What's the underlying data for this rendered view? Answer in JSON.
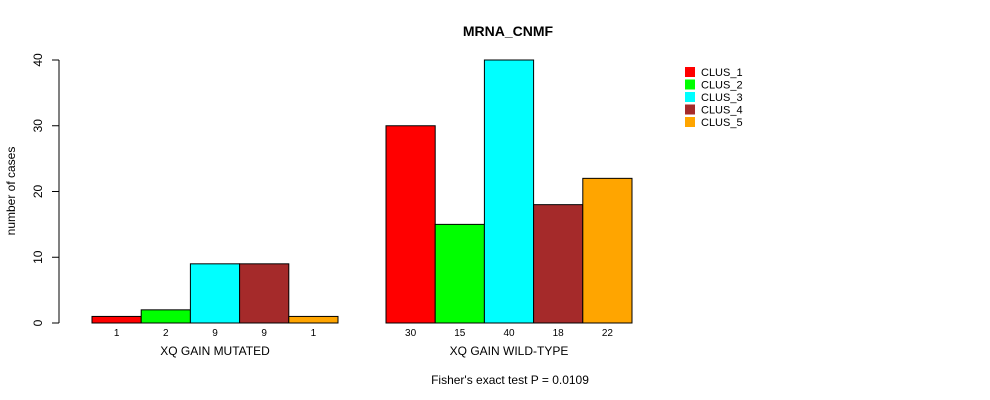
{
  "chart_data": {
    "type": "bar",
    "title": "MRNA_CNMF",
    "ylabel": "number of cases",
    "xlabel": "",
    "ylim": [
      0,
      40
    ],
    "yticks": [
      0,
      10,
      20,
      30,
      40
    ],
    "groups": [
      "XQ GAIN MUTATED",
      "XQ GAIN WILD-TYPE"
    ],
    "series": [
      {
        "name": "CLUS_1",
        "color": "#ff0000",
        "values": [
          1,
          30
        ]
      },
      {
        "name": "CLUS_2",
        "color": "#00ff00",
        "values": [
          2,
          15
        ]
      },
      {
        "name": "CLUS_3",
        "color": "#00ffff",
        "values": [
          9,
          40
        ]
      },
      {
        "name": "CLUS_4",
        "color": "#a52a2a",
        "values": [
          9,
          18
        ]
      },
      {
        "name": "CLUS_5",
        "color": "#ffa500",
        "values": [
          1,
          22
        ]
      }
    ],
    "legend_position": "top-right",
    "annotation": "Fisher's exact test P = 0.0109",
    "grid": false
  }
}
